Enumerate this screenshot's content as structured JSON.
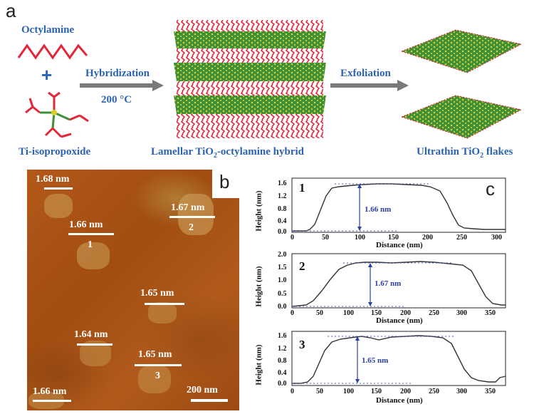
{
  "panel_a": {
    "letter": "a",
    "octylamine": "Octylamine",
    "plus": "+",
    "ti_isopropoxide": "Ti-isopropoxide",
    "hybridization": "Hybridization",
    "temperature": "200 °C",
    "exfoliation": "Exfoliation",
    "lamellar_pre": "Lamellar TiO",
    "lamellar_sub": "2",
    "lamellar_post": "-octylamine hybrid",
    "flakes_pre": "Ultrathin TiO",
    "flakes_sub": "2",
    "flakes_post": " flakes",
    "colors": {
      "label": "#2b63b0",
      "arrow": "#7a7a7a",
      "red": "#e0283a",
      "green": "#3d8f3a",
      "yellow": "#d8d02a"
    }
  },
  "panel_b": {
    "letter": "b",
    "scale_bar": "200 nm",
    "labels": [
      "1.68 nm",
      "1.67 nm",
      "1.66 nm",
      "1.65 nm",
      "1.64 nm",
      "1.65 nm",
      "1.66 nm"
    ],
    "flake_numbers": [
      "1",
      "2",
      "3"
    ]
  },
  "panel_c": {
    "letter": "c",
    "xlabel": "Distance (nm)",
    "ylabel": "Height (nm)",
    "plots": [
      {
        "num": "1",
        "label": "1.66 nm",
        "yticks": [
          "1.6",
          "1.2",
          "0.8",
          "0.4",
          "0.0"
        ],
        "xticks": [
          "0",
          "50",
          "100",
          "150",
          "200",
          "250",
          "300"
        ]
      },
      {
        "num": "2",
        "label": "1.67 nm",
        "yticks": [
          "2.0",
          "1.5",
          "1.0",
          "0.5",
          "0.0"
        ],
        "xticks": [
          "0",
          "50",
          "100",
          "150",
          "200",
          "250",
          "300",
          "350"
        ]
      },
      {
        "num": "3",
        "label": "1.65 nm",
        "yticks": [
          "1.6",
          "1.2",
          "0.8",
          "0.4",
          "0.0"
        ],
        "xticks": [
          "0",
          "50",
          "100",
          "150",
          "200",
          "250",
          "300",
          "350"
        ]
      }
    ]
  }
}
